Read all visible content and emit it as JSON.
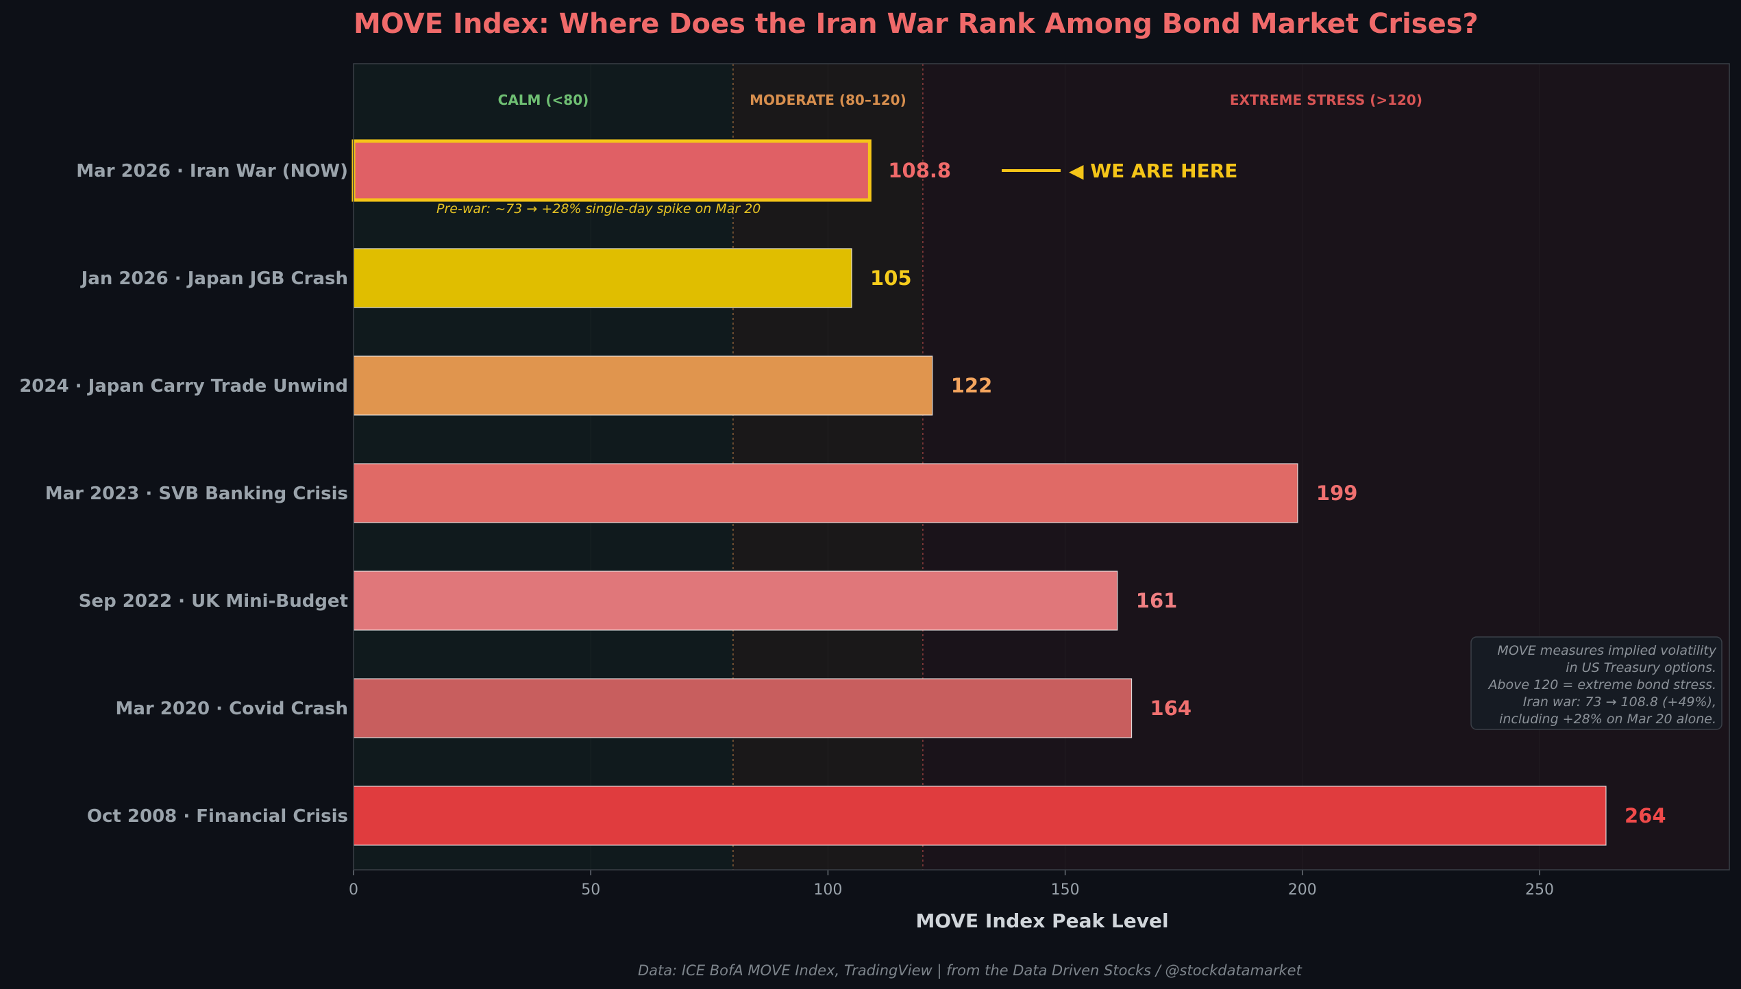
{
  "chart_data": {
    "type": "bar",
    "orientation": "horizontal",
    "title": "MOVE Index: Where Does the Iran War Rank Among Bond Market Crises?",
    "xlabel": "MOVE Index Peak Level",
    "xlim": [
      0,
      290
    ],
    "xticks": [
      "0",
      "50",
      "100",
      "150",
      "200",
      "250"
    ],
    "xtick_values": [
      0,
      50,
      100,
      150,
      200,
      250
    ],
    "zones": [
      {
        "label": "CALM (<80)",
        "from": 0,
        "to": 80,
        "color": "#6fbf73"
      },
      {
        "label": "MODERATE (80–120)",
        "from": 80,
        "to": 120,
        "color": "#d88f4e"
      },
      {
        "label": "EXTREME STRESS (>120)",
        "from": 120,
        "to": 290,
        "color": "#d85555"
      }
    ],
    "bars": [
      {
        "category": "Mar 2026 · Iran War (NOW)",
        "value": 108.8,
        "value_label": "108.8",
        "color": "#e06065",
        "label_color": "#f06a6a",
        "highlight": true
      },
      {
        "category": "Jan 2026 · Japan JGB Crash",
        "value": 105,
        "value_label": "105",
        "color": "#e0be00",
        "label_color": "#f5cc1c",
        "highlight": false
      },
      {
        "category": "2024 · Japan Carry Trade Unwind",
        "value": 122,
        "value_label": "122",
        "color": "#e0954e",
        "label_color": "#f5a55e",
        "highlight": false
      },
      {
        "category": "Mar 2023 · SVB Banking Crisis",
        "value": 199,
        "value_label": "199",
        "color": "#e06a66",
        "label_color": "#f07070",
        "highlight": false
      },
      {
        "category": "Sep 2022 · UK Mini-Budget",
        "value": 161,
        "value_label": "161",
        "color": "#e0777a",
        "label_color": "#f07f82",
        "highlight": false
      },
      {
        "category": "Mar 2020 · Covid Crash",
        "value": 164,
        "value_label": "164",
        "color": "#c85e5e",
        "label_color": "#f07070",
        "highlight": false
      },
      {
        "category": "Oct 2008 · Financial Crisis",
        "value": 264,
        "value_label": "264",
        "color": "#e03c3e",
        "label_color": "#f04a4a",
        "highlight": false
      }
    ],
    "annotations": {
      "we_are_here": "◀  WE ARE HERE",
      "prewar_note": "Pre-war: ~73  →  +28% single-day spike on Mar 20",
      "info_box": [
        "MOVE measures implied volatility",
        "in US Treasury options.",
        "Above 120 = extreme bond stress.",
        "Iran war: 73 → 108.8 (+49%),",
        "including +28% on Mar 20 alone."
      ]
    },
    "footer": "Data: ICE BofA MOVE Index, TradingView  |  from the Data Driven Stocks / @stockdatamarket"
  },
  "colors": {
    "background": "#0d1017",
    "plot_border": "#3a3f47",
    "title": "#f06a6a",
    "category_text": "#9aa3ab",
    "tick_text": "#9aa3ab",
    "xlabel": "#d0d5da",
    "highlight": "#f5c518",
    "footer": "#7d848b",
    "info_text": "#8b9198"
  }
}
